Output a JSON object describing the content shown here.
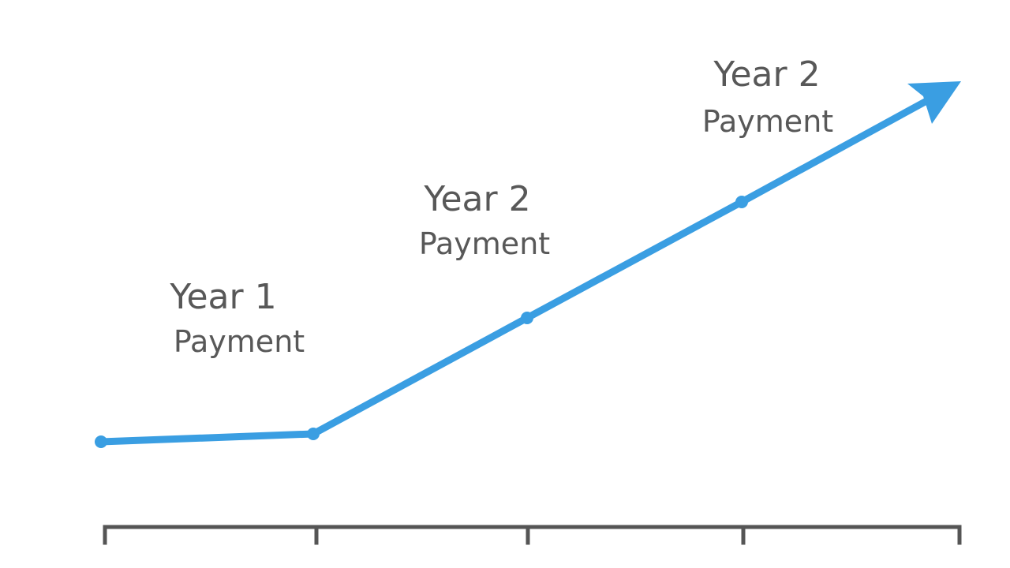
{
  "labels": [
    {
      "title": "Year 1",
      "subtitle": "Payment"
    },
    {
      "title": "Year 2",
      "subtitle": "Payment"
    },
    {
      "title": "Year 2",
      "subtitle": "Payment"
    }
  ]
}
